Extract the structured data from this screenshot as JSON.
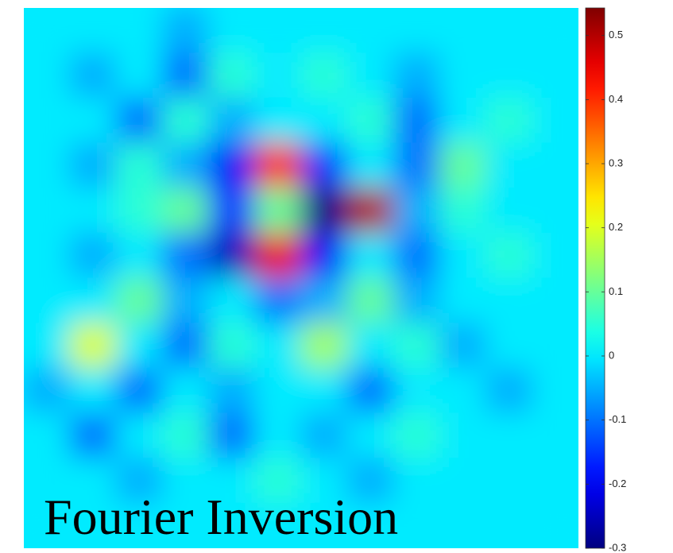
{
  "chart_data": {
    "type": "heatmap",
    "annotation": "Fourier Inversion",
    "colormap": "jet",
    "clim": [
      -0.3,
      0.543
    ],
    "cticks": [
      -0.3,
      -0.2,
      -0.1,
      0,
      0.1,
      0.2,
      0.3,
      0.4,
      0.5
    ],
    "z": [
      [
        0,
        0,
        0,
        -0.05,
        0,
        0,
        0,
        0,
        0,
        0,
        0,
        0
      ],
      [
        0,
        -0.05,
        0,
        -0.1,
        0.05,
        0,
        0.05,
        0,
        -0.05,
        0,
        0,
        0
      ],
      [
        0,
        0,
        -0.1,
        0.05,
        -0.05,
        0,
        0,
        0.05,
        -0.1,
        0,
        0.05,
        0
      ],
      [
        0,
        -0.05,
        0.05,
        -0.05,
        -0.2,
        0.4,
        -0.15,
        0,
        -0.1,
        0.1,
        0,
        0
      ],
      [
        0,
        0,
        0.05,
        0.1,
        -0.15,
        0.1,
        -0.3,
        0.5,
        -0.05,
        0.05,
        0,
        0
      ],
      [
        0,
        -0.05,
        0,
        -0.1,
        -0.25,
        0.45,
        -0.2,
        0,
        -0.1,
        0,
        0.05,
        0
      ],
      [
        0,
        0,
        0.1,
        -0.05,
        0,
        -0.1,
        -0.05,
        0.1,
        -0.05,
        0,
        0,
        0
      ],
      [
        0,
        0.2,
        0,
        -0.1,
        0.05,
        0,
        0.15,
        0,
        0.05,
        -0.05,
        0,
        0
      ],
      [
        -0.05,
        0,
        -0.1,
        0,
        -0.05,
        0,
        0,
        -0.1,
        0,
        0,
        -0.05,
        0
      ],
      [
        0,
        -0.1,
        0,
        0.05,
        -0.1,
        0,
        -0.05,
        0,
        0.05,
        0,
        0,
        0
      ],
      [
        0,
        0,
        -0.05,
        0,
        0,
        0.05,
        0,
        -0.05,
        0,
        0,
        0,
        0
      ],
      [
        0,
        0,
        0,
        0,
        0,
        0,
        0,
        0,
        0,
        0,
        0,
        0
      ]
    ]
  }
}
